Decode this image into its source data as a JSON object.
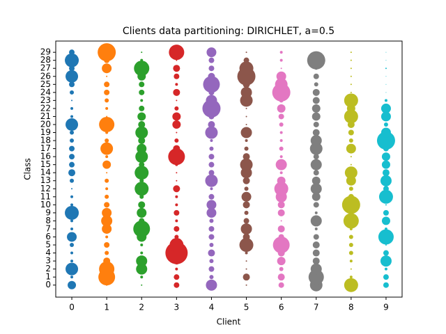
{
  "chart_data": {
    "type": "scatter",
    "title": "Clients data partitioning: DIRICHLET, a=0.5",
    "x_label": "Client",
    "y_label": "Class",
    "xlim": [
      -0.46,
      9.46
    ],
    "ylim": [
      -1.5,
      30.4
    ],
    "xticks": [
      0,
      1,
      2,
      3,
      4,
      5,
      6,
      7,
      8,
      9
    ],
    "yticks": [
      0,
      1,
      2,
      3,
      4,
      5,
      6,
      7,
      8,
      9,
      10,
      11,
      12,
      13,
      14,
      15,
      16,
      17,
      18,
      19,
      20,
      21,
      22,
      23,
      24,
      25,
      26,
      27,
      28,
      29
    ],
    "series": [
      {
        "color": "#1f77b4",
        "x": 0,
        "values": [
          0,
          1,
          2,
          3,
          4,
          5,
          6,
          7,
          8,
          9,
          10,
          11,
          12,
          13,
          14,
          15,
          16,
          17,
          18,
          19,
          20,
          21,
          22,
          23,
          24,
          25,
          26,
          27,
          28,
          29
        ],
        "sizes": [
          6,
          2,
          9,
          2,
          2,
          3,
          7,
          2,
          2,
          10,
          2,
          2,
          1,
          3,
          5,
          4,
          4,
          4,
          3,
          3,
          9,
          2,
          2,
          1,
          3,
          4,
          9,
          4,
          10,
          4
        ]
      },
      {
        "color": "#ff7f0e",
        "x": 1,
        "values": [
          0,
          1,
          2,
          3,
          4,
          5,
          6,
          7,
          8,
          9,
          10,
          11,
          12,
          13,
          14,
          15,
          16,
          17,
          18,
          19,
          20,
          21,
          22,
          23,
          24,
          25,
          26,
          27,
          28,
          29
        ],
        "sizes": [
          1,
          12,
          11,
          5,
          3,
          4,
          2,
          7,
          8,
          7,
          4,
          3,
          2,
          3,
          1,
          6,
          2,
          9,
          3,
          2,
          11,
          1,
          2,
          3,
          4,
          4,
          1,
          7,
          4,
          13
        ]
      },
      {
        "color": "#2ca02c",
        "x": 2,
        "values": [
          0,
          1,
          2,
          3,
          4,
          5,
          6,
          7,
          8,
          9,
          10,
          11,
          12,
          13,
          14,
          15,
          16,
          17,
          18,
          19,
          20,
          21,
          22,
          23,
          24,
          25,
          26,
          27,
          28,
          29
        ],
        "sizes": [
          1,
          2,
          8,
          8,
          2,
          2,
          7,
          12,
          4,
          7,
          5,
          3,
          10,
          3,
          10,
          4,
          9,
          7,
          5,
          9,
          5,
          6,
          4,
          2,
          4,
          4,
          6,
          11,
          2,
          1
        ]
      },
      {
        "color": "#d62728",
        "x": 3,
        "values": [
          0,
          1,
          2,
          3,
          4,
          5,
          6,
          7,
          8,
          9,
          10,
          11,
          12,
          13,
          14,
          15,
          16,
          17,
          18,
          19,
          20,
          21,
          22,
          23,
          24,
          25,
          26,
          27,
          28,
          29
        ],
        "sizes": [
          4,
          4,
          2,
          5,
          16,
          10,
          3,
          4,
          2,
          4,
          2,
          2,
          5,
          1,
          1,
          2,
          12,
          5,
          3,
          1,
          6,
          6,
          3,
          1,
          5,
          2,
          4,
          5,
          1,
          11
        ]
      },
      {
        "color": "#9467bd",
        "x": 4,
        "values": [
          0,
          1,
          2,
          3,
          4,
          5,
          6,
          7,
          8,
          9,
          10,
          11,
          12,
          13,
          14,
          15,
          16,
          17,
          18,
          19,
          20,
          21,
          22,
          23,
          24,
          25,
          26,
          27,
          28,
          29
        ],
        "sizes": [
          8,
          3,
          4,
          3,
          5,
          3,
          4,
          4,
          3,
          7,
          7,
          4,
          2,
          9,
          4,
          4,
          4,
          3,
          2,
          9,
          5,
          4,
          13,
          8,
          4,
          12,
          5,
          4,
          4,
          7
        ]
      },
      {
        "color": "#8c564b",
        "x": 5,
        "values": [
          0,
          1,
          2,
          3,
          4,
          5,
          6,
          7,
          8,
          9,
          10,
          11,
          12,
          13,
          14,
          15,
          16,
          17,
          18,
          19,
          20,
          21,
          22,
          23,
          24,
          25,
          26,
          27,
          28,
          29
        ],
        "sizes": [
          1,
          5,
          1,
          1,
          2,
          10,
          5,
          8,
          4,
          3,
          5,
          7,
          3,
          5,
          8,
          9,
          5,
          3,
          2,
          8,
          1,
          1,
          1,
          9,
          8,
          5,
          13,
          10,
          4,
          1
        ]
      },
      {
        "color": "#e377c2",
        "x": 6,
        "values": [
          0,
          1,
          2,
          3,
          4,
          5,
          6,
          7,
          8,
          9,
          10,
          11,
          12,
          13,
          14,
          15,
          16,
          17,
          18,
          19,
          20,
          21,
          22,
          23,
          24,
          25,
          26,
          27,
          28,
          29
        ],
        "sizes": [
          4,
          5,
          3,
          6,
          5,
          12,
          4,
          5,
          1,
          5,
          5,
          8,
          10,
          6,
          2,
          8,
          2,
          3,
          2,
          2,
          3,
          4,
          6,
          3,
          13,
          9,
          7,
          1,
          2,
          2
        ]
      },
      {
        "color": "#7f7f7f",
        "x": 7,
        "values": [
          0,
          1,
          2,
          3,
          4,
          5,
          6,
          7,
          8,
          9,
          10,
          11,
          12,
          13,
          14,
          15,
          16,
          17,
          18,
          19,
          20,
          21,
          22,
          23,
          24,
          25,
          26,
          27,
          28,
          29
        ],
        "sizes": [
          9,
          11,
          8,
          5,
          5,
          5,
          4,
          2,
          8,
          2,
          4,
          6,
          8,
          6,
          4,
          8,
          4,
          9,
          8,
          5,
          4,
          6,
          6,
          5,
          5,
          3,
          4,
          2,
          13,
          1
        ]
      },
      {
        "color": "#bcbd22",
        "x": 8,
        "values": [
          0,
          1,
          2,
          3,
          4,
          5,
          6,
          7,
          8,
          9,
          10,
          11,
          12,
          13,
          14,
          15,
          16,
          17,
          18,
          19,
          20,
          21,
          22,
          23,
          24,
          25,
          26,
          27,
          28,
          29
        ],
        "sizes": [
          10,
          2,
          1,
          2,
          3,
          3,
          3,
          2,
          11,
          2,
          13,
          4,
          3,
          7,
          9,
          1,
          1,
          7,
          3,
          4,
          5,
          10,
          6,
          10,
          1,
          1,
          1,
          1,
          1,
          1
        ]
      },
      {
        "color": "#17becf",
        "x": 9,
        "values": [
          0,
          1,
          2,
          3,
          4,
          5,
          6,
          7,
          8,
          9,
          10,
          11,
          12,
          13,
          14,
          15,
          16,
          17,
          18,
          19,
          20,
          21,
          22,
          23,
          24,
          25,
          26,
          27,
          28,
          29
        ],
        "sizes": [
          4,
          4,
          2,
          8,
          4,
          1,
          11,
          2,
          6,
          4,
          1,
          10,
          4,
          8,
          5,
          6,
          6,
          4,
          13,
          7,
          3,
          7,
          7,
          2,
          0.5,
          0.5,
          0.5,
          1,
          0.5,
          0.5
        ]
      }
    ]
  }
}
